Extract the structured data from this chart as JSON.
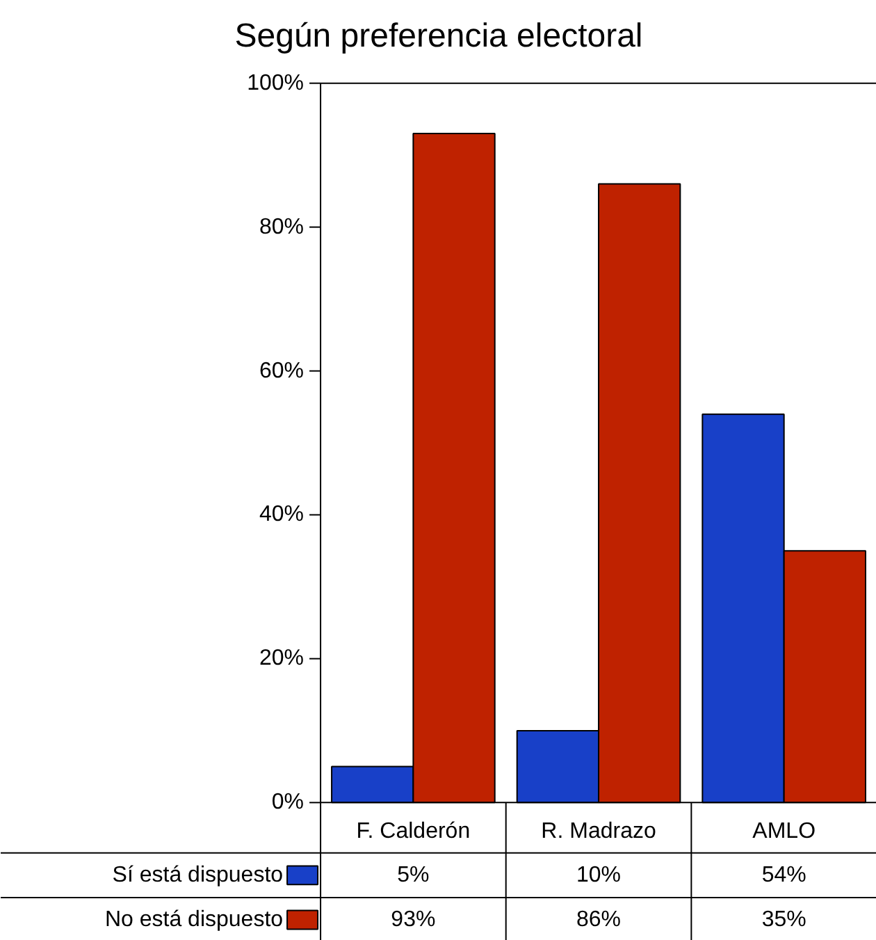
{
  "chart_data": {
    "type": "bar",
    "title": "Según preferencia electoral",
    "categories": [
      "F. Calderón",
      "R. Madrazo",
      "AMLO"
    ],
    "series": [
      {
        "name": "Sí está dispuesto",
        "color": "#1840c8",
        "values": [
          5,
          10,
          54
        ],
        "value_labels": [
          "5%",
          "10%",
          "54%"
        ]
      },
      {
        "name": "No está dispuesto",
        "color": "#bf2200",
        "values": [
          93,
          86,
          35
        ],
        "value_labels": [
          "93%",
          "86%",
          "35%"
        ]
      }
    ],
    "ylim": [
      0,
      100
    ],
    "yticks": [
      {
        "value": 0,
        "label": "0%"
      },
      {
        "value": 20,
        "label": "20%"
      },
      {
        "value": 40,
        "label": "40%"
      },
      {
        "value": 60,
        "label": "60%"
      },
      {
        "value": 80,
        "label": "80%"
      },
      {
        "value": 100,
        "label": "100%"
      }
    ],
    "grid": false,
    "legend": "bottom"
  }
}
